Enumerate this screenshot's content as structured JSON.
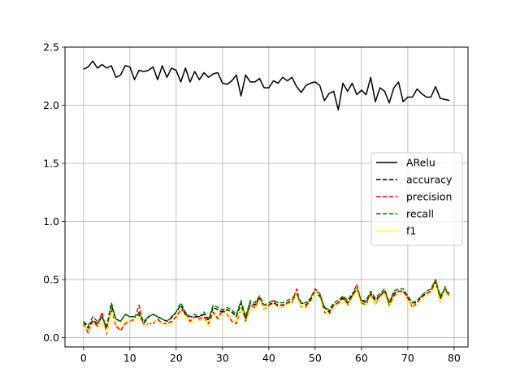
{
  "chart_data": {
    "type": "line",
    "title": "",
    "xlabel": "",
    "ylabel": "",
    "xlim": [
      -4,
      83
    ],
    "ylim": [
      -0.08,
      2.5
    ],
    "xticks": [
      0,
      10,
      20,
      30,
      40,
      50,
      60,
      70,
      80
    ],
    "xtick_labels": [
      "0",
      "10",
      "20",
      "30",
      "40",
      "50",
      "60",
      "70",
      "80"
    ],
    "yticks": [
      0.0,
      0.5,
      1.0,
      1.5,
      2.0,
      2.5
    ],
    "ytick_labels": [
      "0.0",
      "0.5",
      "1.0",
      "1.5",
      "2.0",
      "2.5"
    ],
    "grid": true,
    "legend_position": "center-right",
    "x": [
      0,
      1,
      2,
      3,
      4,
      5,
      6,
      7,
      8,
      9,
      10,
      11,
      12,
      13,
      14,
      15,
      16,
      17,
      18,
      19,
      20,
      21,
      22,
      23,
      24,
      25,
      26,
      27,
      28,
      29,
      30,
      31,
      32,
      33,
      34,
      35,
      36,
      37,
      38,
      39,
      40,
      41,
      42,
      43,
      44,
      45,
      46,
      47,
      48,
      49,
      50,
      51,
      52,
      53,
      54,
      55,
      56,
      57,
      58,
      59,
      60,
      61,
      62,
      63,
      64,
      65,
      66,
      67,
      68,
      69,
      70,
      71,
      72,
      73,
      74,
      75,
      76,
      77,
      78,
      79
    ],
    "series": [
      {
        "name": "ARelu",
        "color": "#000000",
        "dash": "solid",
        "values": [
          2.31,
          2.33,
          2.38,
          2.32,
          2.35,
          2.32,
          2.34,
          2.24,
          2.26,
          2.34,
          2.33,
          2.22,
          2.3,
          2.29,
          2.3,
          2.33,
          2.22,
          2.34,
          2.24,
          2.32,
          2.3,
          2.2,
          2.32,
          2.2,
          2.29,
          2.22,
          2.28,
          2.24,
          2.27,
          2.28,
          2.19,
          2.18,
          2.21,
          2.26,
          2.08,
          2.26,
          2.2,
          2.2,
          2.23,
          2.15,
          2.15,
          2.21,
          2.19,
          2.24,
          2.21,
          2.24,
          2.16,
          2.11,
          2.17,
          2.19,
          2.2,
          2.17,
          2.04,
          2.1,
          2.12,
          1.96,
          2.19,
          2.12,
          2.19,
          2.09,
          2.13,
          2.09,
          2.24,
          2.03,
          2.15,
          2.12,
          2.02,
          2.15,
          2.2,
          2.03,
          2.07,
          2.07,
          2.14,
          2.1,
          2.07,
          2.07,
          2.16,
          2.06,
          2.05,
          2.04
        ]
      },
      {
        "name": "accuracy",
        "color": "#000000",
        "dash": "dashed",
        "values": [
          0.14,
          0.08,
          0.15,
          0.12,
          0.18,
          0.08,
          0.28,
          0.16,
          0.14,
          0.2,
          0.18,
          0.18,
          0.2,
          0.12,
          0.18,
          0.2,
          0.18,
          0.16,
          0.14,
          0.17,
          0.22,
          0.28,
          0.2,
          0.18,
          0.18,
          0.18,
          0.2,
          0.15,
          0.26,
          0.24,
          0.22,
          0.24,
          0.22,
          0.18,
          0.3,
          0.16,
          0.3,
          0.28,
          0.35,
          0.28,
          0.28,
          0.3,
          0.28,
          0.28,
          0.3,
          0.32,
          0.36,
          0.3,
          0.28,
          0.32,
          0.38,
          0.36,
          0.26,
          0.22,
          0.28,
          0.3,
          0.34,
          0.3,
          0.36,
          0.42,
          0.32,
          0.3,
          0.38,
          0.32,
          0.36,
          0.4,
          0.3,
          0.38,
          0.4,
          0.4,
          0.35,
          0.3,
          0.3,
          0.35,
          0.38,
          0.4,
          0.48,
          0.34,
          0.42,
          0.36
        ]
      },
      {
        "name": "precision",
        "color": "#ff0000",
        "dash": "dashed",
        "values": [
          0.12,
          0.04,
          0.14,
          0.1,
          0.22,
          0.03,
          0.24,
          0.1,
          0.06,
          0.12,
          0.14,
          0.16,
          0.28,
          0.1,
          0.12,
          0.12,
          0.16,
          0.12,
          0.12,
          0.14,
          0.18,
          0.24,
          0.22,
          0.14,
          0.18,
          0.16,
          0.18,
          0.12,
          0.22,
          0.16,
          0.24,
          0.2,
          0.14,
          0.12,
          0.26,
          0.14,
          0.28,
          0.26,
          0.34,
          0.24,
          0.28,
          0.32,
          0.26,
          0.26,
          0.3,
          0.3,
          0.42,
          0.26,
          0.26,
          0.34,
          0.42,
          0.38,
          0.22,
          0.2,
          0.28,
          0.3,
          0.36,
          0.28,
          0.36,
          0.46,
          0.3,
          0.28,
          0.38,
          0.28,
          0.36,
          0.4,
          0.28,
          0.36,
          0.4,
          0.4,
          0.34,
          0.26,
          0.3,
          0.36,
          0.38,
          0.4,
          0.5,
          0.3,
          0.44,
          0.34
        ]
      },
      {
        "name": "recall",
        "color": "#008000",
        "dash": "dashed",
        "values": [
          0.14,
          0.1,
          0.18,
          0.14,
          0.18,
          0.1,
          0.3,
          0.16,
          0.14,
          0.2,
          0.18,
          0.18,
          0.22,
          0.14,
          0.18,
          0.2,
          0.18,
          0.16,
          0.14,
          0.18,
          0.22,
          0.3,
          0.22,
          0.18,
          0.2,
          0.18,
          0.22,
          0.16,
          0.28,
          0.26,
          0.24,
          0.26,
          0.24,
          0.2,
          0.32,
          0.18,
          0.32,
          0.3,
          0.36,
          0.28,
          0.3,
          0.32,
          0.3,
          0.3,
          0.32,
          0.34,
          0.38,
          0.3,
          0.3,
          0.34,
          0.4,
          0.38,
          0.26,
          0.24,
          0.3,
          0.32,
          0.36,
          0.32,
          0.38,
          0.42,
          0.32,
          0.32,
          0.4,
          0.34,
          0.38,
          0.42,
          0.3,
          0.4,
          0.42,
          0.42,
          0.36,
          0.3,
          0.32,
          0.36,
          0.4,
          0.42,
          0.5,
          0.36,
          0.42,
          0.38
        ]
      },
      {
        "name": "f1",
        "color": "#ffff00",
        "dash": "dashed",
        "values": [
          0.1,
          0.06,
          0.12,
          0.08,
          0.14,
          0.04,
          0.22,
          0.12,
          0.08,
          0.14,
          0.14,
          0.14,
          0.18,
          0.1,
          0.12,
          0.14,
          0.14,
          0.12,
          0.1,
          0.12,
          0.16,
          0.22,
          0.18,
          0.12,
          0.14,
          0.14,
          0.16,
          0.1,
          0.2,
          0.18,
          0.2,
          0.2,
          0.16,
          0.14,
          0.26,
          0.12,
          0.26,
          0.24,
          0.32,
          0.24,
          0.26,
          0.28,
          0.26,
          0.26,
          0.28,
          0.3,
          0.36,
          0.26,
          0.26,
          0.3,
          0.38,
          0.34,
          0.22,
          0.2,
          0.26,
          0.28,
          0.32,
          0.28,
          0.34,
          0.4,
          0.28,
          0.28,
          0.36,
          0.28,
          0.34,
          0.38,
          0.26,
          0.34,
          0.38,
          0.38,
          0.32,
          0.26,
          0.28,
          0.32,
          0.36,
          0.38,
          0.46,
          0.3,
          0.4,
          0.34
        ]
      }
    ]
  }
}
